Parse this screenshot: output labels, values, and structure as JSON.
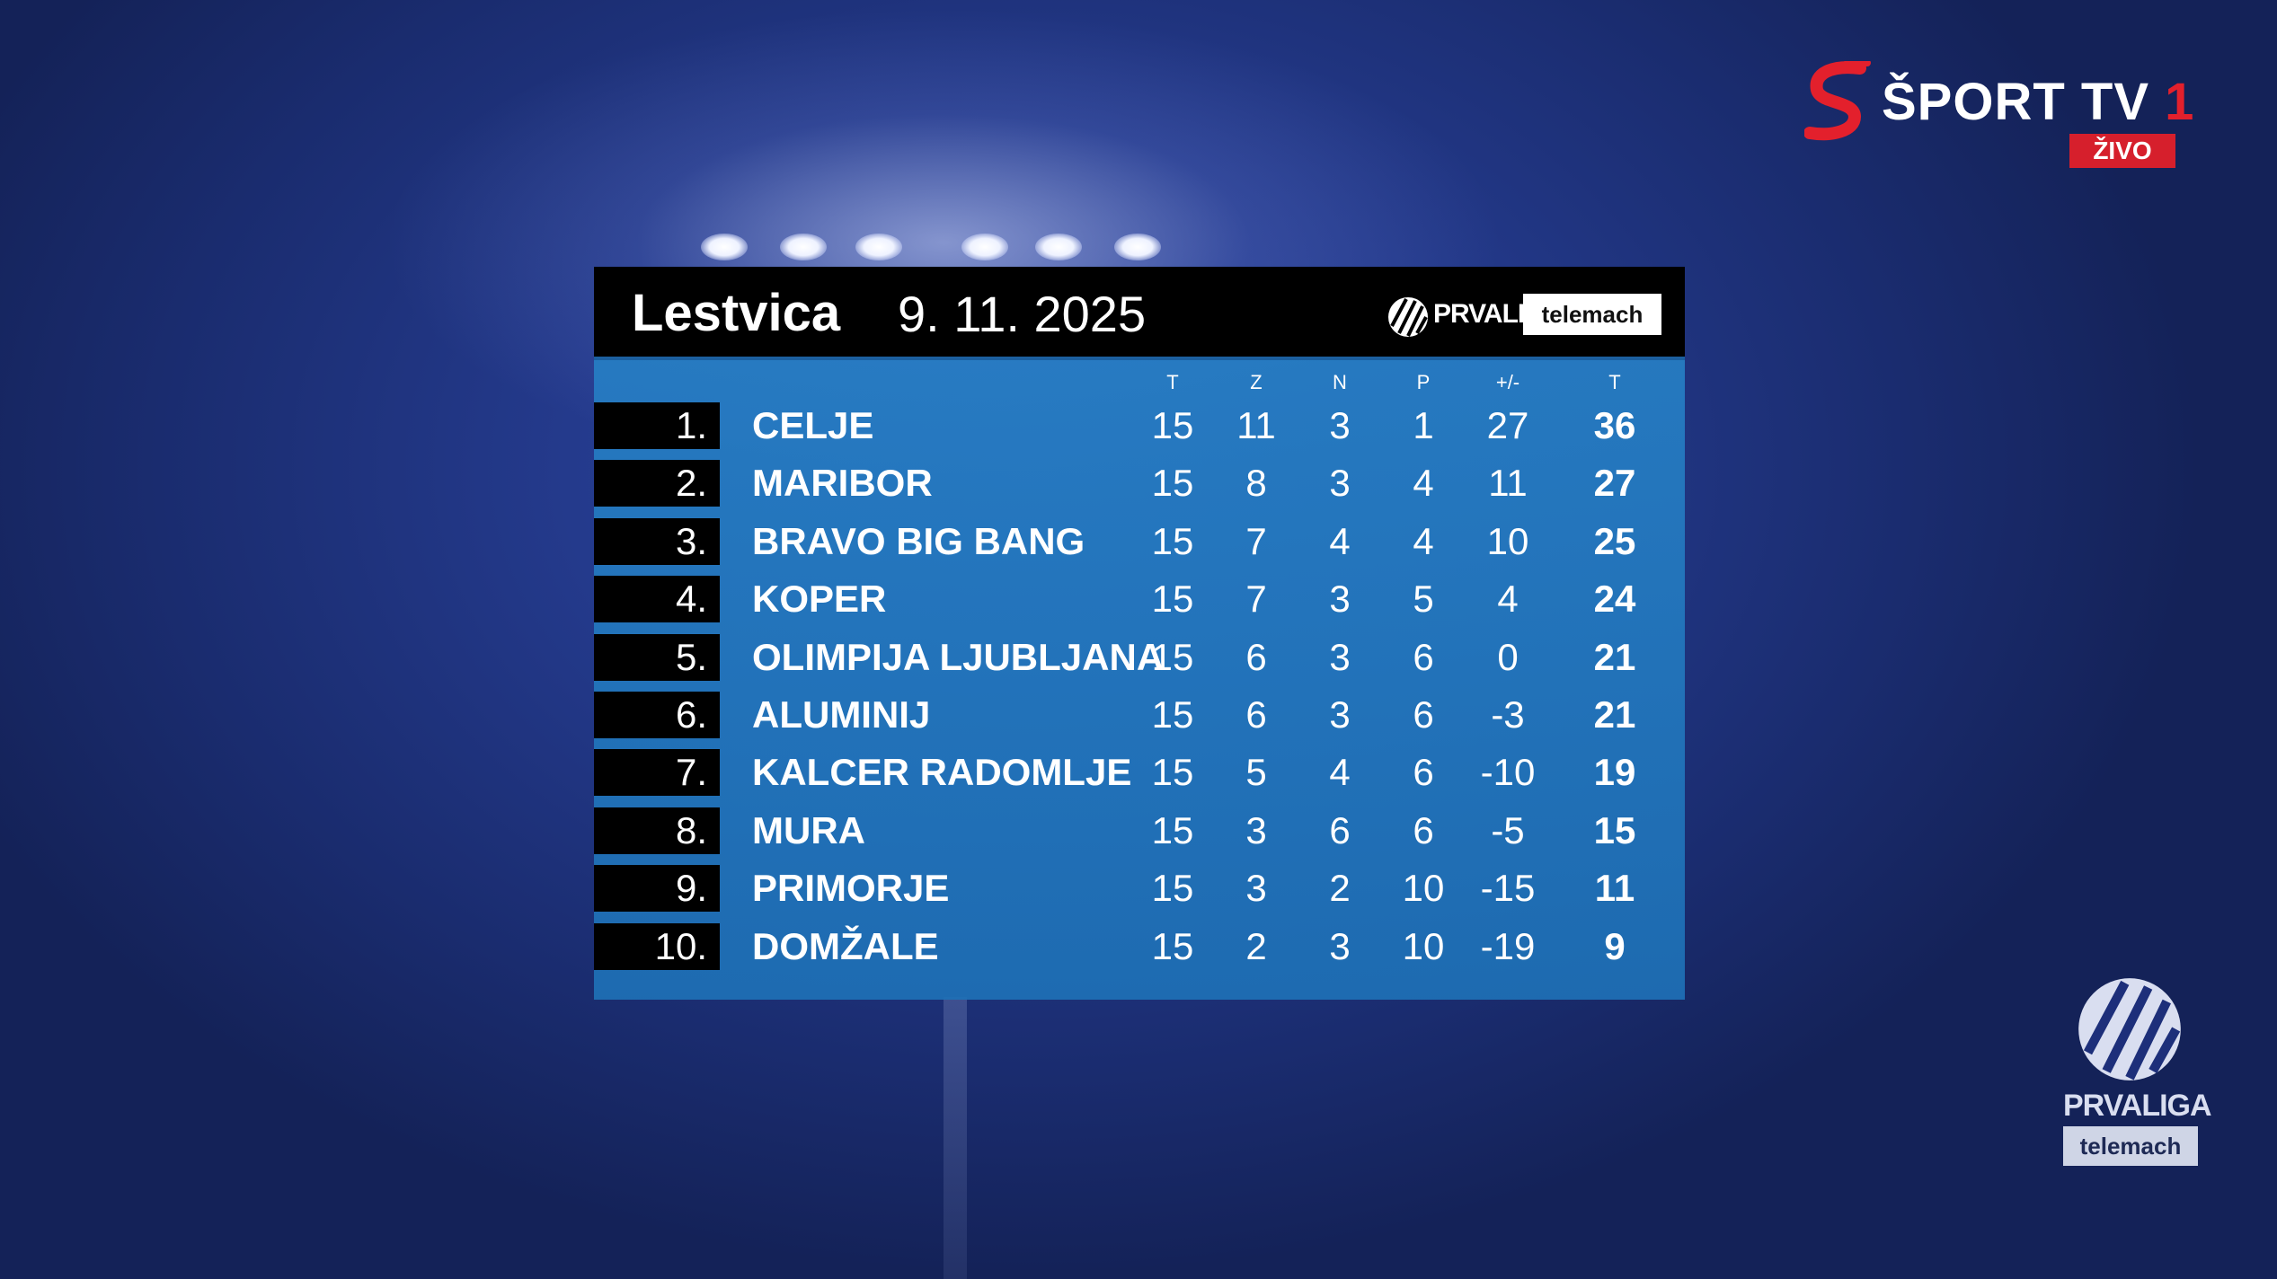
{
  "channel": {
    "name": "ŠPORT TV",
    "number": "1",
    "live": "ŽIVO"
  },
  "table": {
    "title": "Lestvica",
    "date": "9. 11. 2025",
    "league_text": "PRVALIGA",
    "sponsor": "telemach",
    "columns": [
      "T",
      "Z",
      "N",
      "P",
      "+/-",
      "T"
    ],
    "rows": [
      {
        "pos": "1.",
        "team": "CELJE",
        "played": "15",
        "won": "11",
        "drawn": "3",
        "lost": "1",
        "diff": "27",
        "points": "36"
      },
      {
        "pos": "2.",
        "team": "MARIBOR",
        "played": "15",
        "won": "8",
        "drawn": "3",
        "lost": "4",
        "diff": "11",
        "points": "27"
      },
      {
        "pos": "3.",
        "team": "BRAVO BIG BANG",
        "played": "15",
        "won": "7",
        "drawn": "4",
        "lost": "4",
        "diff": "10",
        "points": "25"
      },
      {
        "pos": "4.",
        "team": "KOPER",
        "played": "15",
        "won": "7",
        "drawn": "3",
        "lost": "5",
        "diff": "4",
        "points": "24"
      },
      {
        "pos": "5.",
        "team": "OLIMPIJA LJUBLJANA",
        "played": "15",
        "won": "6",
        "drawn": "3",
        "lost": "6",
        "diff": "0",
        "points": "21"
      },
      {
        "pos": "6.",
        "team": "ALUMINIJ",
        "played": "15",
        "won": "6",
        "drawn": "3",
        "lost": "6",
        "diff": "-3",
        "points": "21"
      },
      {
        "pos": "7.",
        "team": "KALCER RADOMLJE",
        "played": "15",
        "won": "5",
        "drawn": "4",
        "lost": "6",
        "diff": "-10",
        "points": "19"
      },
      {
        "pos": "8.",
        "team": "MURA",
        "played": "15",
        "won": "3",
        "drawn": "6",
        "lost": "6",
        "diff": "-5",
        "points": "15"
      },
      {
        "pos": "9.",
        "team": "PRIMORJE",
        "played": "15",
        "won": "3",
        "drawn": "2",
        "lost": "10",
        "diff": "-15",
        "points": "11"
      },
      {
        "pos": "10.",
        "team": "DOMŽALE",
        "played": "15",
        "won": "2",
        "drawn": "3",
        "lost": "10",
        "diff": "-19",
        "points": "9"
      }
    ]
  },
  "corner_logo": {
    "text": "PRVALIGA",
    "sponsor": "telemach"
  }
}
